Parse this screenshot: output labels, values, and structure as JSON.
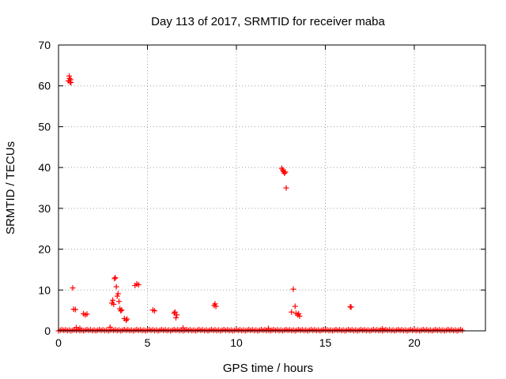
{
  "chart_data": {
    "type": "scatter",
    "title": "Day 113 of 2017, SRMTID for receiver maba",
    "xlabel": "GPS time / hours",
    "ylabel": "SRMTID / TECUs",
    "xlim": [
      0,
      24
    ],
    "ylim": [
      0,
      70
    ],
    "xticks": [
      0,
      5,
      10,
      15,
      20
    ],
    "yticks": [
      0,
      10,
      20,
      30,
      40,
      50,
      60,
      70
    ],
    "grid": true,
    "marker": "plus",
    "marker_color": "#ff0000",
    "baseline": {
      "x_start": 0.0,
      "x_end": 22.75,
      "step": 0.1,
      "y_values": [
        0.0,
        0.15,
        0.3,
        0.1,
        0.25,
        0.05,
        0.2
      ]
    },
    "points": [
      [
        0.55,
        61.2
      ],
      [
        0.6,
        62.4
      ],
      [
        0.62,
        61.8
      ],
      [
        0.65,
        60.9
      ],
      [
        0.68,
        61.5
      ],
      [
        0.7,
        60.8
      ],
      [
        0.8,
        10.5
      ],
      [
        0.85,
        5.3
      ],
      [
        0.95,
        5.2
      ],
      [
        1.0,
        0.8
      ],
      [
        1.2,
        0.6
      ],
      [
        1.4,
        4.2
      ],
      [
        1.5,
        3.9
      ],
      [
        1.6,
        4.1
      ],
      [
        3.0,
        6.8
      ],
      [
        3.05,
        7.5
      ],
      [
        3.1,
        6.5
      ],
      [
        3.15,
        12.8
      ],
      [
        3.2,
        13.0
      ],
      [
        3.25,
        10.8
      ],
      [
        3.3,
        8.5
      ],
      [
        3.35,
        9.1
      ],
      [
        3.4,
        7.2
      ],
      [
        3.45,
        5.4
      ],
      [
        3.5,
        4.9
      ],
      [
        3.55,
        5.1
      ],
      [
        3.7,
        3.0
      ],
      [
        3.8,
        2.6
      ],
      [
        3.85,
        2.9
      ],
      [
        4.3,
        11.1
      ],
      [
        4.4,
        11.5
      ],
      [
        4.5,
        11.3
      ],
      [
        5.3,
        5.1
      ],
      [
        5.4,
        4.9
      ],
      [
        6.5,
        4.3
      ],
      [
        6.55,
        4.6
      ],
      [
        6.6,
        3.2
      ],
      [
        6.65,
        3.9
      ],
      [
        8.75,
        6.2
      ],
      [
        8.8,
        6.6
      ],
      [
        8.85,
        6.0
      ],
      [
        12.55,
        39.8
      ],
      [
        12.6,
        39.4
      ],
      [
        12.65,
        39.0
      ],
      [
        12.7,
        38.6
      ],
      [
        12.75,
        38.9
      ],
      [
        12.8,
        35.0
      ],
      [
        13.1,
        4.6
      ],
      [
        13.2,
        10.2
      ],
      [
        13.3,
        6.0
      ],
      [
        13.35,
        4.3
      ],
      [
        13.45,
        3.9
      ],
      [
        13.5,
        4.2
      ],
      [
        13.55,
        3.6
      ],
      [
        16.4,
        5.9
      ],
      [
        16.45,
        5.8
      ],
      [
        2.9,
        0.9
      ],
      [
        7.0,
        0.7
      ],
      [
        18.2,
        0.5
      ],
      [
        11.8,
        0.6
      ]
    ]
  }
}
